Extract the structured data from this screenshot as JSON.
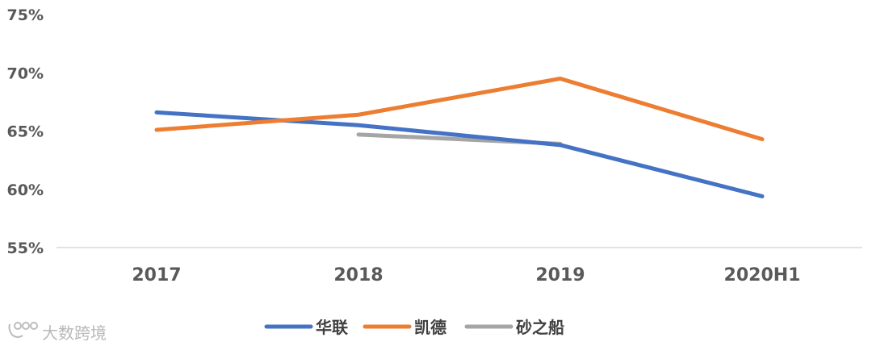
{
  "chart_data": {
    "type": "line",
    "categories": [
      "2017",
      "2018",
      "2019",
      "2020H1"
    ],
    "y_ticks": [
      "75%",
      "70%",
      "65%",
      "60%",
      "55%"
    ],
    "ylim": [
      55,
      75
    ],
    "y_unit": "%",
    "grid": false,
    "legend_position": "bottom",
    "series": [
      {
        "name": "华联",
        "color": "#4472c4",
        "values": [
          66.6,
          65.5,
          63.8,
          59.4
        ]
      },
      {
        "name": "凯德",
        "color": "#ed7d31",
        "values": [
          65.1,
          66.4,
          69.5,
          64.3
        ]
      },
      {
        "name": "砂之船",
        "color": "#a5a5a5",
        "values": [
          null,
          64.7,
          63.9,
          null
        ]
      }
    ]
  },
  "watermark": {
    "text": "大数跨境",
    "icon": "logo-icon"
  }
}
